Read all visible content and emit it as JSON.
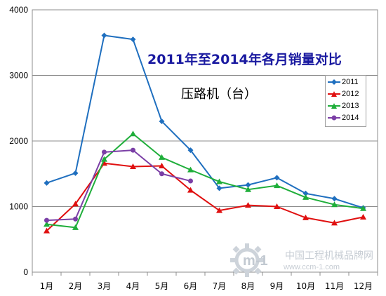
{
  "chart_data": {
    "type": "line",
    "title": "2011年至2014年各月销量对比",
    "subtitle": "压路机（台）",
    "categories": [
      "1月",
      "2月",
      "3月",
      "4月",
      "5月",
      "6月",
      "7月",
      "8月",
      "9月",
      "10月",
      "11月",
      "12月"
    ],
    "series": [
      {
        "name": "2011",
        "color": "#1f6fbf",
        "marker": "diamond",
        "values": [
          1360,
          1510,
          3610,
          3550,
          2300,
          1860,
          1280,
          1330,
          1440,
          1200,
          1120,
          980
        ]
      },
      {
        "name": "2012",
        "color": "#e01010",
        "marker": "triangle",
        "values": [
          630,
          1040,
          1660,
          1610,
          1620,
          1250,
          940,
          1020,
          1000,
          830,
          750,
          840
        ]
      },
      {
        "name": "2013",
        "color": "#1fae3a",
        "marker": "triangle",
        "values": [
          730,
          680,
          1720,
          2110,
          1750,
          1560,
          1380,
          1260,
          1320,
          1140,
          1030,
          970
        ]
      },
      {
        "name": "2014",
        "color": "#7b3fa6",
        "marker": "circle",
        "values": [
          790,
          810,
          1830,
          1860,
          1500,
          1390,
          null,
          null,
          null,
          null,
          null,
          null
        ]
      }
    ],
    "ylim": [
      0,
      4000
    ],
    "yticks": [
      0,
      1000,
      2000,
      3000,
      4000
    ],
    "xlabel": "",
    "ylabel": "",
    "grid": true,
    "legend_position": "right"
  },
  "watermark": {
    "logo_text": "m-1",
    "site_name": "中国工程机械品牌网",
    "url": "www.ccm-1.com"
  }
}
